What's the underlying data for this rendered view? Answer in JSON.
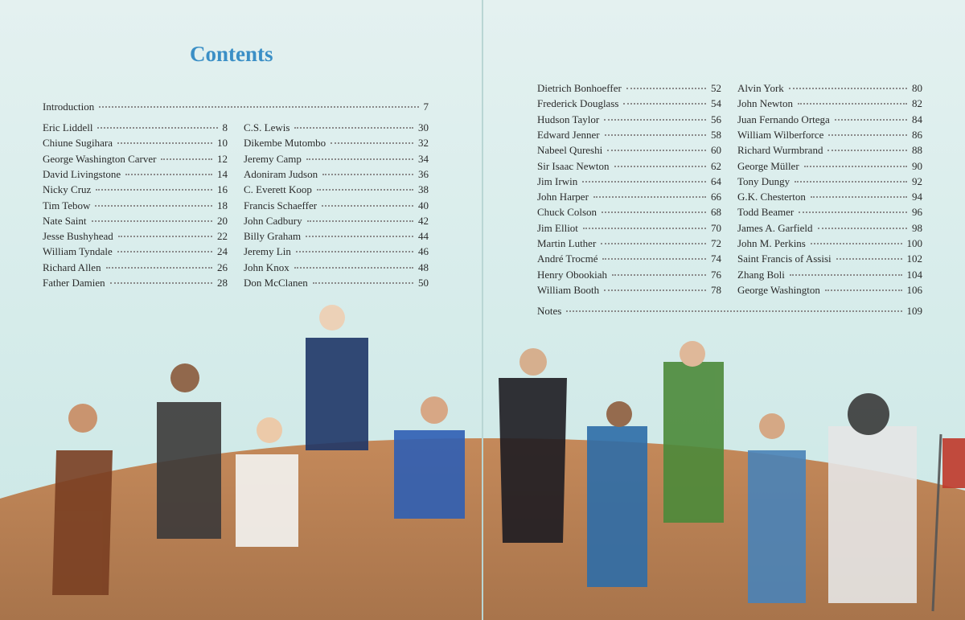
{
  "title": "Contents",
  "introduction": {
    "label": "Introduction",
    "page": 7
  },
  "columns": [
    {
      "entries": [
        {
          "label": "Eric Liddell",
          "page": 8
        },
        {
          "label": "Chiune Sugihara",
          "page": 10
        },
        {
          "label": "George Washington Carver",
          "page": 12
        },
        {
          "label": "David Livingstone",
          "page": 14
        },
        {
          "label": "Nicky Cruz",
          "page": 16
        },
        {
          "label": "Tim Tebow",
          "page": 18
        },
        {
          "label": "Nate Saint",
          "page": 20
        },
        {
          "label": "Jesse Bushyhead",
          "page": 22
        },
        {
          "label": "William Tyndale",
          "page": 24
        },
        {
          "label": "Richard Allen",
          "page": 26
        },
        {
          "label": "Father Damien",
          "page": 28
        }
      ]
    },
    {
      "entries": [
        {
          "label": "C.S. Lewis",
          "page": 30
        },
        {
          "label": "Dikembe Mutombo",
          "page": 32
        },
        {
          "label": "Jeremy Camp",
          "page": 34
        },
        {
          "label": "Adoniram Judson",
          "page": 36
        },
        {
          "label": "C. Everett Koop",
          "page": 38
        },
        {
          "label": "Francis Schaeffer",
          "page": 40
        },
        {
          "label": "John Cadbury",
          "page": 42
        },
        {
          "label": "Billy Graham",
          "page": 44
        },
        {
          "label": "Jeremy Lin",
          "page": 46
        },
        {
          "label": "John Knox",
          "page": 48
        },
        {
          "label": "Don McClanen",
          "page": 50
        }
      ]
    },
    {
      "entries": [
        {
          "label": "Dietrich Bonhoeffer",
          "page": 52
        },
        {
          "label": "Frederick Douglass",
          "page": 54
        },
        {
          "label": "Hudson Taylor",
          "page": 56
        },
        {
          "label": "Edward Jenner",
          "page": 58
        },
        {
          "label": "Nabeel Qureshi",
          "page": 60
        },
        {
          "label": "Sir Isaac Newton",
          "page": 62
        },
        {
          "label": "Jim Irwin",
          "page": 64
        },
        {
          "label": "John Harper",
          "page": 66
        },
        {
          "label": "Chuck Colson",
          "page": 68
        },
        {
          "label": "Jim Elliot",
          "page": 70
        },
        {
          "label": "Martin Luther",
          "page": 72
        },
        {
          "label": "André Trocmé",
          "page": 74
        },
        {
          "label": "Henry Obookiah",
          "page": 76
        },
        {
          "label": "William Booth",
          "page": 78
        }
      ]
    },
    {
      "entries": [
        {
          "label": "Alvin York",
          "page": 80
        },
        {
          "label": "John Newton",
          "page": 82
        },
        {
          "label": "Juan Fernando Ortega",
          "page": 84
        },
        {
          "label": "William Wilberforce",
          "page": 86
        },
        {
          "label": "Richard Wurmbrand",
          "page": 88
        },
        {
          "label": "George Müller",
          "page": 90
        },
        {
          "label": "Tony Dungy",
          "page": 92
        },
        {
          "label": "G.K. Chesterton",
          "page": 94
        },
        {
          "label": "Todd Beamer",
          "page": 96
        },
        {
          "label": "James A. Garfield",
          "page": 98
        },
        {
          "label": "John M. Perkins",
          "page": 100
        },
        {
          "label": "Saint Francis of Assisi",
          "page": 102
        },
        {
          "label": "Zhang Boli",
          "page": 104
        },
        {
          "label": "George Washington",
          "page": 106
        }
      ]
    }
  ],
  "notes": {
    "label": "Notes",
    "page": 109
  }
}
